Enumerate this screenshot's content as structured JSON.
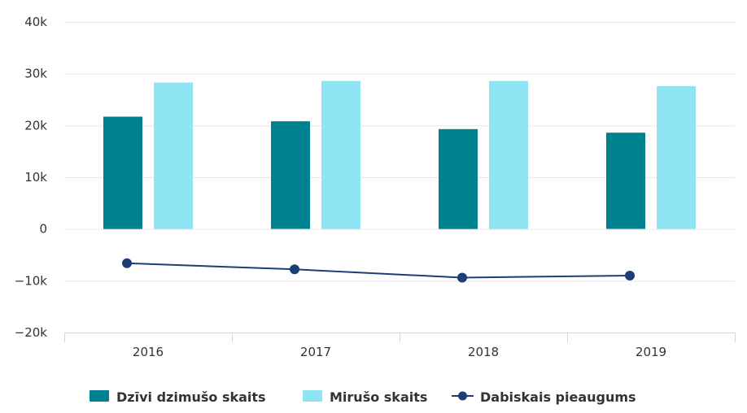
{
  "chart_data": {
    "type": "bar",
    "title": "",
    "xlabel": "",
    "ylabel": "",
    "categories": [
      "2016",
      "2017",
      "2018",
      "2019"
    ],
    "ylim": [
      -20000,
      40000
    ],
    "yticks": [
      40000,
      30000,
      20000,
      10000,
      0,
      -10000,
      -20000
    ],
    "ytick_labels": [
      "40k",
      "30k",
      "20k",
      "10k",
      "0",
      "−10k",
      "−20k"
    ],
    "grid": true,
    "legend_position": "bottom",
    "series": [
      {
        "name": "Dzīvi dzimušo skaits",
        "type": "bar",
        "color": "#00818f",
        "values": [
          21700,
          20800,
          19300,
          18600
        ]
      },
      {
        "name": "Mirušo skaits",
        "type": "bar",
        "color": "#8ee4f3",
        "values": [
          28300,
          28600,
          28600,
          27600
        ]
      },
      {
        "name": "Dabiskais pieaugums",
        "type": "line",
        "color": "#1b3f73",
        "values": [
          -6600,
          -7800,
          -9400,
          -9000
        ]
      }
    ]
  }
}
